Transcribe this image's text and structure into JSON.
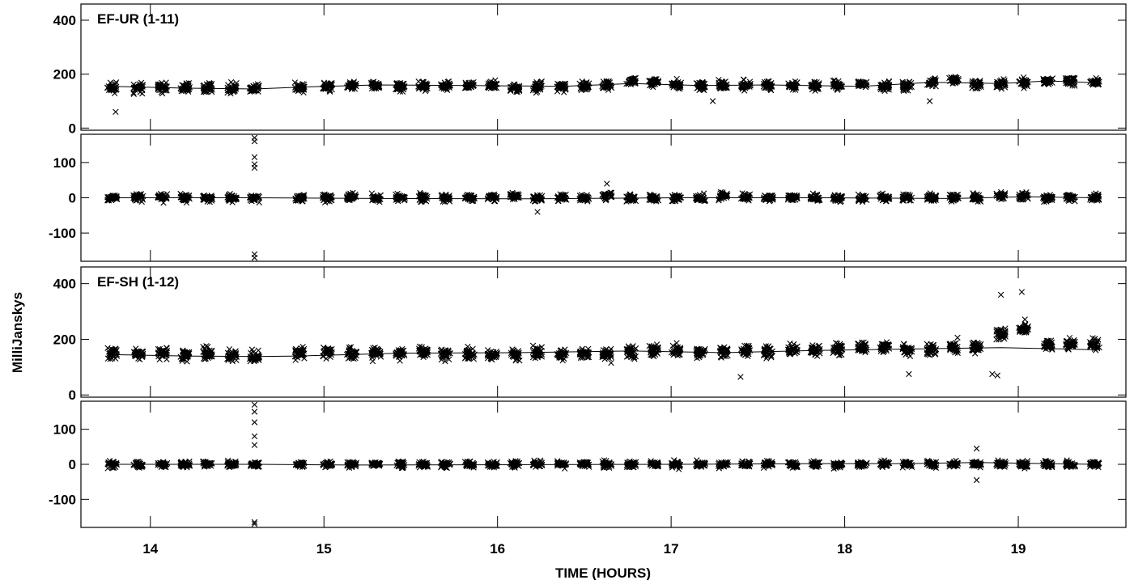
{
  "figure": {
    "ylabel": "MilliJanskys",
    "xlabel": "TIME (HOURS)"
  },
  "chart_data": {
    "type": "scatter",
    "xlabel": "TIME (HOURS)",
    "ylabel": "MilliJanskys",
    "xlim": [
      13.6,
      19.62
    ],
    "xticks": [
      14,
      15,
      16,
      17,
      18,
      19
    ],
    "scan_times": [
      13.78,
      13.93,
      14.07,
      14.2,
      14.33,
      14.47,
      14.6,
      14.86,
      15.02,
      15.16,
      15.3,
      15.44,
      15.57,
      15.7,
      15.84,
      15.97,
      16.1,
      16.23,
      16.37,
      16.5,
      16.63,
      16.77,
      16.9,
      17.03,
      17.17,
      17.3,
      17.43,
      17.56,
      17.7,
      17.83,
      17.96,
      18.1,
      18.23,
      18.36,
      18.5,
      18.63,
      18.76,
      18.9,
      19.03,
      19.17,
      19.3,
      19.44
    ],
    "panels": [
      {
        "label": "EF-UR (1-11)",
        "quantity": "amplitude",
        "ylim": [
          -8,
          460
        ],
        "yticks": [
          0,
          200,
          400
        ],
        "model": {
          "x": [
            13.78,
            14.2,
            14.6,
            14.86,
            15.3,
            15.84,
            16.37,
            16.77,
            17.17,
            17.56,
            18.1,
            18.5,
            18.9,
            19.17,
            19.44
          ],
          "y": [
            155,
            148,
            145,
            152,
            160,
            158,
            155,
            165,
            158,
            160,
            155,
            170,
            165,
            175,
            168
          ]
        },
        "scatter": {
          "center": [
            148,
            148,
            150,
            150,
            150,
            148,
            145,
            150,
            155,
            155,
            155,
            155,
            158,
            155,
            158,
            158,
            150,
            152,
            155,
            155,
            158,
            175,
            170,
            160,
            158,
            158,
            155,
            158,
            158,
            158,
            155,
            160,
            158,
            155,
            170,
            180,
            162,
            165,
            170,
            175,
            175,
            172
          ],
          "spread": 55,
          "outliers": [
            [
              13.8,
              60
            ],
            [
              18.49,
              100
            ],
            [
              17.24,
              100
            ]
          ]
        }
      },
      {
        "label": "",
        "quantity": "phase",
        "ylim": [
          -180,
          180
        ],
        "yticks": [
          -100,
          0,
          100
        ],
        "model": {
          "x": [
            13.78,
            14.6,
            15.3,
            16.23,
            17.03,
            17.83,
            18.63,
            19.03,
            19.44
          ],
          "y": [
            0,
            0,
            -2,
            -3,
            0,
            0,
            -2,
            3,
            0
          ]
        },
        "scatter": {
          "center": [
            0,
            0,
            0,
            0,
            0,
            0,
            0,
            0,
            0,
            0,
            0,
            0,
            0,
            0,
            0,
            0,
            5,
            0,
            0,
            0,
            5,
            0,
            0,
            0,
            0,
            5,
            0,
            0,
            0,
            0,
            0,
            0,
            0,
            0,
            0,
            0,
            0,
            5,
            5,
            0,
            0,
            0
          ],
          "spread": 35,
          "outliers": [
            [
              14.6,
              95
            ],
            [
              14.6,
              85
            ],
            [
              14.6,
              115
            ],
            [
              14.6,
              170
            ],
            [
              14.6,
              160
            ],
            [
              14.6,
              -160
            ],
            [
              14.6,
              -170
            ],
            [
              16.23,
              -40
            ],
            [
              16.63,
              40
            ]
          ]
        }
      },
      {
        "label": "EF-SH (1-12)",
        "quantity": "amplitude",
        "ylim": [
          -8,
          460
        ],
        "yticks": [
          0,
          200,
          400
        ],
        "model": {
          "x": [
            13.78,
            14.2,
            14.6,
            14.86,
            15.44,
            16.1,
            16.77,
            17.3,
            17.83,
            18.36,
            18.9,
            19.3,
            19.44
          ],
          "y": [
            145,
            140,
            138,
            140,
            150,
            152,
            158,
            152,
            160,
            165,
            170,
            165,
            162
          ]
        },
        "scatter": {
          "center": [
            150,
            148,
            150,
            145,
            148,
            140,
            135,
            150,
            155,
            148,
            150,
            150,
            155,
            150,
            150,
            140,
            145,
            150,
            148,
            150,
            145,
            155,
            158,
            160,
            150,
            155,
            160,
            155,
            160,
            160,
            165,
            170,
            170,
            165,
            165,
            175,
            172,
            220,
            240,
            180,
            180,
            180
          ],
          "spread": 70,
          "outliers": [
            [
              18.85,
              75
            ],
            [
              18.88,
              70
            ],
            [
              18.9,
              360
            ],
            [
              19.02,
              370
            ],
            [
              17.4,
              65
            ],
            [
              18.37,
              75
            ]
          ]
        }
      },
      {
        "label": "",
        "quantity": "phase",
        "ylim": [
          -180,
          180
        ],
        "yticks": [
          -100,
          0,
          100
        ],
        "model": {
          "x": [
            13.78,
            14.6,
            15.16,
            16.23,
            17.03,
            17.83,
            18.36,
            18.76,
            19.44
          ],
          "y": [
            0,
            0,
            -2,
            -1,
            0,
            2,
            2,
            5,
            0
          ]
        },
        "scatter": {
          "center": [
            0,
            0,
            0,
            0,
            0,
            0,
            0,
            0,
            0,
            0,
            0,
            0,
            0,
            0,
            0,
            0,
            0,
            0,
            0,
            0,
            0,
            0,
            0,
            0,
            0,
            0,
            0,
            0,
            0,
            0,
            0,
            0,
            0,
            0,
            0,
            0,
            0,
            0,
            0,
            0,
            0,
            0
          ],
          "spread": 30,
          "outliers": [
            [
              14.6,
              150
            ],
            [
              14.6,
              120
            ],
            [
              14.6,
              80
            ],
            [
              14.6,
              55
            ],
            [
              14.6,
              170
            ],
            [
              14.6,
              -165
            ],
            [
              14.6,
              -170
            ],
            [
              18.76,
              -45
            ],
            [
              18.76,
              45
            ]
          ]
        }
      }
    ]
  }
}
